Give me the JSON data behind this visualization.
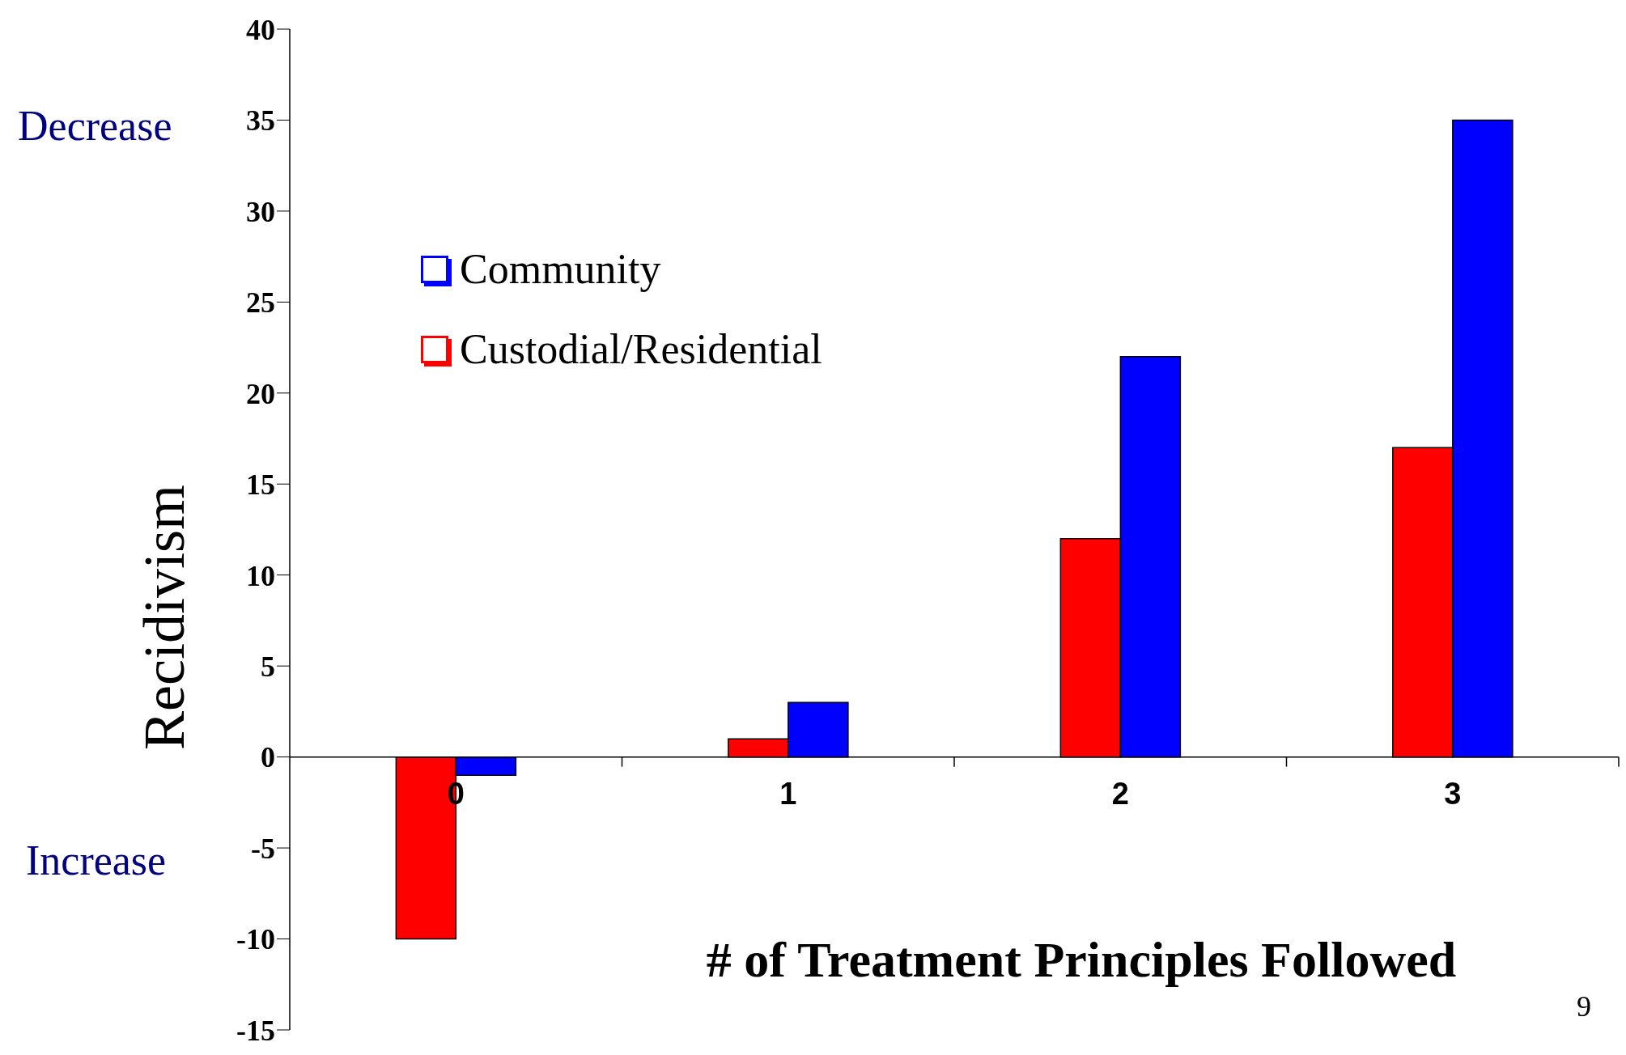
{
  "chart_data": {
    "type": "bar",
    "ylabel": "Recidivism",
    "xlabel": "# of Treatment Principles Followed",
    "categories": [
      "0",
      "1",
      "2",
      "3"
    ],
    "series": [
      {
        "name": "Custodial/Residential",
        "color": "#ff0000",
        "values": [
          -10,
          1,
          12,
          17
        ]
      },
      {
        "name": "Community",
        "color": "#0000ff",
        "values": [
          -1,
          3,
          22,
          35
        ]
      }
    ],
    "ylim": [
      -15,
      40
    ],
    "yticks": [
      -15,
      -10,
      -5,
      0,
      5,
      10,
      15,
      20,
      25,
      30,
      35,
      40
    ],
    "grid": false,
    "legend": "top left",
    "annotations": [
      "Decrease",
      "Increase",
      "9"
    ]
  }
}
